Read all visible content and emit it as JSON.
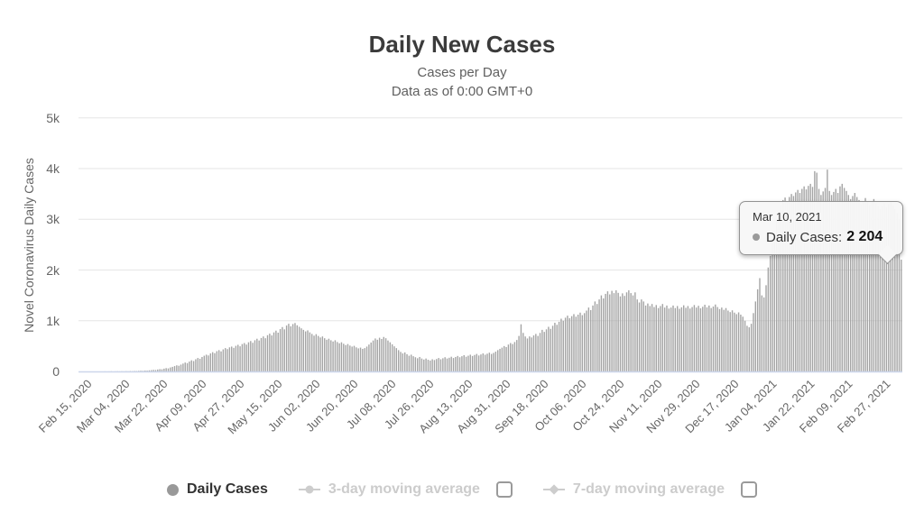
{
  "title": "Daily New Cases",
  "subtitle_line1": "Cases per Day",
  "subtitle_line2": "Data as of 0:00 GMT+0",
  "y_axis": {
    "title": "Novel Coronavirus Daily Cases",
    "tick_labels": [
      "5k",
      "4k",
      "3k",
      "2k",
      "1k",
      "0"
    ]
  },
  "x_axis": {
    "tick_labels": [
      "Feb 15, 2020",
      "Mar 04, 2020",
      "Mar 22, 2020",
      "Apr 09, 2020",
      "Apr 27, 2020",
      "May 15, 2020",
      "Jun 02, 2020",
      "Jun 20, 2020",
      "Jul 08, 2020",
      "Jul 26, 2020",
      "Aug 13, 2020",
      "Aug 31, 2020",
      "Sep 18, 2020",
      "Oct 06, 2020",
      "Oct 24, 2020",
      "Nov 11, 2020",
      "Nov 29, 2020",
      "Dec 17, 2020",
      "Jan 04, 2021",
      "Jan 22, 2021",
      "Feb 09, 2021",
      "Feb 27, 2021"
    ]
  },
  "tooltip": {
    "date": "Mar 10, 2021",
    "series_label": "Daily Cases:",
    "value": "2 204"
  },
  "legend": {
    "items": [
      {
        "label": "Daily Cases",
        "marker": "circle",
        "enabled": true,
        "has_checkbox": false
      },
      {
        "label": "3-day moving average",
        "marker": "line-circle",
        "enabled": false,
        "has_checkbox": true,
        "checked": false
      },
      {
        "label": "7-day moving average",
        "marker": "line-diamond",
        "enabled": false,
        "has_checkbox": true,
        "checked": false
      }
    ]
  },
  "chart_data": {
    "type": "bar",
    "title": "Daily New Cases",
    "subtitle": "Cases per Day — Data as of 0:00 GMT+0",
    "ylabel": "Novel Coronavirus Daily Cases",
    "ylim": [
      0,
      5000
    ],
    "y_ticks": [
      0,
      1000,
      2000,
      3000,
      4000,
      5000
    ],
    "grid": "horizontal",
    "legend_position": "bottom",
    "x_start": "Feb 15, 2020",
    "x_end": "Mar 10, 2021",
    "x_interval_days": 1,
    "x_tick_labels": [
      "Feb 15, 2020",
      "Mar 04, 2020",
      "Mar 22, 2020",
      "Apr 09, 2020",
      "Apr 27, 2020",
      "May 15, 2020",
      "Jun 02, 2020",
      "Jun 20, 2020",
      "Jul 08, 2020",
      "Jul 26, 2020",
      "Aug 13, 2020",
      "Aug 31, 2020",
      "Sep 18, 2020",
      "Oct 06, 2020",
      "Oct 24, 2020",
      "Nov 11, 2020",
      "Nov 29, 2020",
      "Dec 17, 2020",
      "Jan 04, 2021",
      "Jan 22, 2021",
      "Feb 09, 2021",
      "Feb 27, 2021"
    ],
    "bar_color": "#a4a4a4",
    "grid_color": "#e6e6e6",
    "axis_line_color": "#ccd6eb",
    "highlighted_point": {
      "date": "Mar 10, 2021",
      "series": "Daily Cases",
      "value": 2204
    },
    "series": [
      {
        "name": "Daily Cases",
        "visible": true,
        "values": [
          0,
          0,
          0,
          0,
          0,
          0,
          0,
          0,
          0,
          0,
          0,
          0,
          2,
          0,
          1,
          3,
          0,
          2,
          4,
          2,
          5,
          3,
          6,
          4,
          8,
          6,
          10,
          9,
          12,
          15,
          13,
          18,
          16,
          22,
          26,
          31,
          28,
          38,
          45,
          42,
          55,
          65,
          60,
          78,
          90,
          105,
          120,
          112,
          135,
          155,
          175,
          165,
          195,
          220,
          205,
          240,
          265,
          250,
          285,
          310,
          330,
          315,
          355,
          380,
          360,
          400,
          420,
          395,
          435,
          460,
          440,
          475,
          490,
          465,
          505,
          525,
          495,
          540,
          560,
          530,
          575,
          600,
          565,
          615,
          645,
          610,
          660,
          690,
          655,
          715,
          745,
          710,
          770,
          805,
          765,
          835,
          875,
          830,
          905,
          940,
          890,
          935,
          955,
          910,
          880,
          850,
          820,
          790,
          810,
          770,
          740,
          705,
          735,
          700,
          670,
          690,
          655,
          625,
          645,
          615,
          590,
          615,
          580,
          555,
          575,
          545,
          520,
          540,
          510,
          490,
          505,
          475,
          455,
          470,
          445,
          460,
          490,
          530,
          570,
          610,
          650,
          625,
          665,
          640,
          680,
          655,
          610,
          575,
          535,
          495,
          460,
          420,
          385,
          355,
          375,
          340,
          310,
          330,
          300,
          280,
          260,
          285,
          255,
          235,
          255,
          230,
          215,
          240,
          225,
          245,
          265,
          240,
          260,
          280,
          255,
          270,
          290,
          265,
          285,
          305,
          280,
          300,
          320,
          290,
          310,
          330,
          305,
          325,
          345,
          315,
          335,
          355,
          330,
          350,
          370,
          345,
          365,
          390,
          420,
          445,
          470,
          500,
          480,
          530,
          560,
          540,
          580,
          620,
          700,
          930,
          760,
          690,
          650,
          690,
          670,
          710,
          740,
          700,
          760,
          820,
          780,
          830,
          880,
          840,
          900,
          960,
          920,
          980,
          1040,
          1000,
          1060,
          1100,
          1050,
          1090,
          1130,
          1080,
          1120,
          1160,
          1110,
          1150,
          1200,
          1260,
          1210,
          1300,
          1380,
          1330,
          1420,
          1500,
          1440,
          1530,
          1580,
          1520,
          1590,
          1545,
          1600,
          1550,
          1480,
          1540,
          1490,
          1560,
          1600,
          1545,
          1500,
          1560,
          1420,
          1360,
          1420,
          1380,
          1300,
          1340,
          1290,
          1330,
          1270,
          1310,
          1250,
          1290,
          1330,
          1260,
          1300,
          1240,
          1260,
          1300,
          1250,
          1290,
          1235,
          1265,
          1305,
          1255,
          1290,
          1240,
          1270,
          1310,
          1260,
          1295,
          1245,
          1275,
          1315,
          1265,
          1300,
          1250,
          1280,
          1320,
          1270,
          1230,
          1260,
          1215,
          1250,
          1200,
          1170,
          1205,
          1160,
          1130,
          1165,
          1120,
          1080,
          1000,
          900,
          870,
          940,
          1150,
          1380,
          1620,
          1840,
          1500,
          1460,
          1700,
          2050,
          2280,
          2520,
          2780,
          3000,
          3160,
          3280,
          3380,
          3430,
          3360,
          3440,
          3500,
          3460,
          3530,
          3580,
          3520,
          3600,
          3650,
          3590,
          3660,
          3700,
          3640,
          3950,
          3920,
          3600,
          3480,
          3550,
          3620,
          3980,
          3560,
          3480,
          3540,
          3600,
          3520,
          3650,
          3700,
          3620,
          3560,
          3480,
          3400,
          3460,
          3520,
          3440,
          3380,
          3300,
          3360,
          3420,
          3340,
          3280,
          3340,
          3400,
          3320,
          3260,
          3200,
          3260,
          3320,
          3240,
          3300,
          3360,
          3280,
          3200,
          3120,
          3000,
          2204
        ]
      },
      {
        "name": "3-day moving average",
        "visible": false,
        "values": []
      },
      {
        "name": "7-day moving average",
        "visible": false,
        "values": []
      }
    ]
  }
}
